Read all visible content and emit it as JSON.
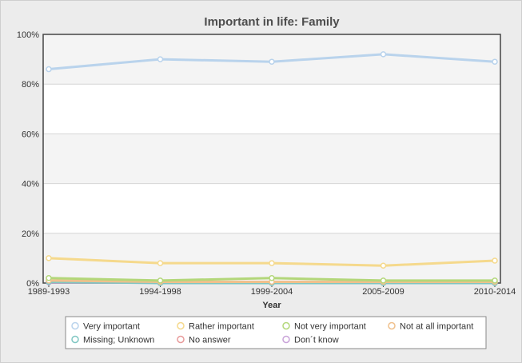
{
  "chart_data": {
    "type": "line",
    "title": "Important in life: Family",
    "xlabel": "Year",
    "ylabel": "",
    "categories": [
      "1989-1993",
      "1994-1998",
      "1999-2004",
      "2005-2009",
      "2010-2014"
    ],
    "ylim": [
      0,
      100
    ],
    "yticks": [
      "0%",
      "20%",
      "40%",
      "60%",
      "80%",
      "100%"
    ],
    "ytick_values": [
      0,
      20,
      40,
      60,
      80,
      100
    ],
    "grid": true,
    "legend_position": "bottom",
    "series": [
      {
        "name": "Very important",
        "color": "#b9d3ec",
        "values": [
          86,
          90,
          89,
          92,
          89
        ]
      },
      {
        "name": "Rather important",
        "color": "#f5d98c",
        "values": [
          10,
          8,
          8,
          7,
          9
        ]
      },
      {
        "name": "Not very important",
        "color": "#b3d77a",
        "values": [
          2,
          1,
          2,
          1,
          1
        ]
      },
      {
        "name": "Not at all important",
        "color": "#f0c08c",
        "values": [
          1,
          0.5,
          0.5,
          0.5,
          0.5
        ]
      },
      {
        "name": "Missing; Unknown",
        "color": "#7fc6c2",
        "values": [
          0.5,
          0,
          0,
          0,
          0
        ]
      },
      {
        "name": "No answer",
        "color": "#e89a9a",
        "values": [
          0.8,
          0.3,
          0.3,
          0.3,
          0.3
        ]
      },
      {
        "name": "Don´t know",
        "color": "#c9a3d9",
        "values": [
          0.3,
          0.2,
          0.2,
          0.2,
          0.2
        ]
      }
    ]
  }
}
